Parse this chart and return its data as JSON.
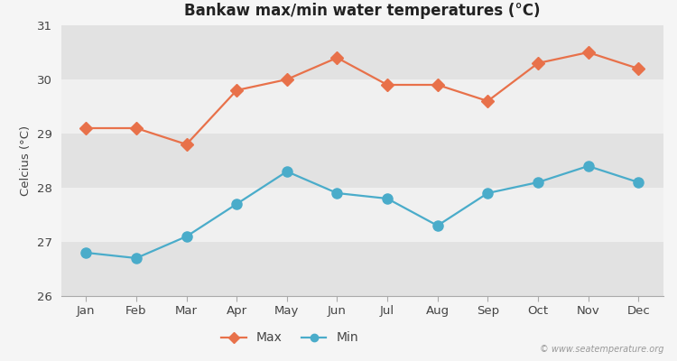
{
  "title": "Bankaw max/min water temperatures (°C)",
  "ylabel": "Celcius (°C)",
  "months": [
    "Jan",
    "Feb",
    "Mar",
    "Apr",
    "May",
    "Jun",
    "Jul",
    "Aug",
    "Sep",
    "Oct",
    "Nov",
    "Dec"
  ],
  "max_temps": [
    29.1,
    29.1,
    28.8,
    29.8,
    30.0,
    30.4,
    29.9,
    29.9,
    29.6,
    30.3,
    30.5,
    30.2
  ],
  "min_temps": [
    26.8,
    26.7,
    27.1,
    27.7,
    28.3,
    27.9,
    27.8,
    27.3,
    27.9,
    28.1,
    28.4,
    28.1
  ],
  "max_color": "#e8714a",
  "min_color": "#4aacca",
  "ylim": [
    26,
    31
  ],
  "yticks": [
    26,
    27,
    28,
    29,
    30,
    31
  ],
  "outer_bg": "#f5f5f5",
  "band_light": "#f0f0f0",
  "band_dark": "#e2e2e2",
  "watermark": "© www.seatemperature.org",
  "linewidth": 1.6,
  "markersize_max": 7,
  "markersize_min": 8
}
